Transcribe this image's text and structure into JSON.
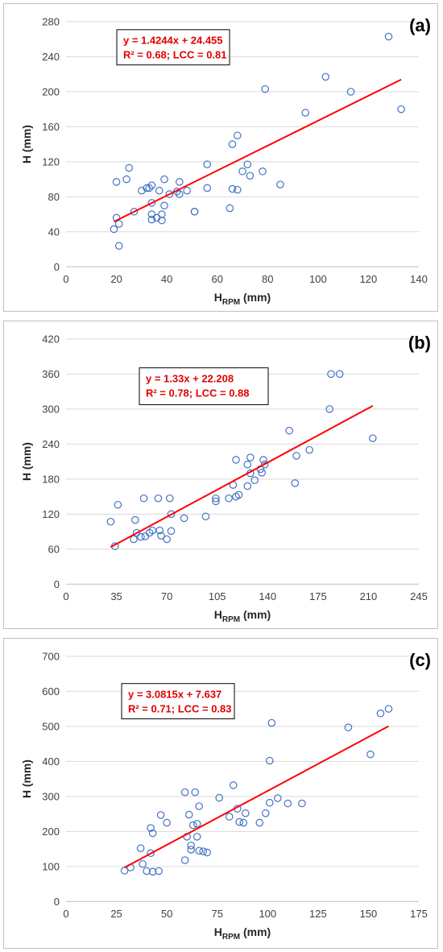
{
  "colors": {
    "points": "#4472c4",
    "fit": "#ff0000",
    "grid": "#d9d9d9",
    "equation": "#e00000"
  },
  "chart_data": [
    {
      "type": "scatter",
      "panel_label": "(a)",
      "xlabel_main": "H",
      "xlabel_sub": "RPM",
      "xlabel_unit": " (mm)",
      "ylabel": "H (mm)",
      "xlim": [
        0,
        140
      ],
      "ylim": [
        0,
        280
      ],
      "xticks": [
        0,
        20,
        40,
        60,
        80,
        100,
        120,
        140
      ],
      "yticks": [
        0,
        40,
        80,
        120,
        160,
        200,
        240,
        280
      ],
      "grid": "horizontal",
      "fit_line": {
        "slope": 1.4244,
        "intercept": 24.455,
        "x_range": [
          19,
          133
        ]
      },
      "equation": "y = 1.4244x + 24.455",
      "stats": "R² = 0.68; LCC = 0.81",
      "points": [
        [
          19,
          43
        ],
        [
          20,
          56
        ],
        [
          20,
          97
        ],
        [
          21,
          49
        ],
        [
          21,
          24
        ],
        [
          24,
          100
        ],
        [
          25,
          113
        ],
        [
          27,
          63
        ],
        [
          30,
          87
        ],
        [
          32,
          90
        ],
        [
          33,
          90
        ],
        [
          34,
          73
        ],
        [
          34,
          93
        ],
        [
          34,
          54
        ],
        [
          34,
          60
        ],
        [
          36,
          56
        ],
        [
          37,
          87
        ],
        [
          38,
          53
        ],
        [
          38,
          60
        ],
        [
          39,
          70
        ],
        [
          39,
          100
        ],
        [
          41,
          83
        ],
        [
          44,
          86
        ],
        [
          45,
          83
        ],
        [
          45,
          97
        ],
        [
          48,
          87
        ],
        [
          51,
          63
        ],
        [
          51,
          63
        ],
        [
          56,
          90
        ],
        [
          56,
          117
        ],
        [
          65,
          67
        ],
        [
          66,
          140
        ],
        [
          66,
          89
        ],
        [
          68,
          88
        ],
        [
          68,
          150
        ],
        [
          70,
          109
        ],
        [
          72,
          117
        ],
        [
          73,
          104
        ],
        [
          78,
          109
        ],
        [
          79,
          203
        ],
        [
          85,
          94
        ],
        [
          95,
          176
        ],
        [
          103,
          217
        ],
        [
          113,
          200
        ],
        [
          128,
          263
        ],
        [
          133,
          180
        ]
      ]
    },
    {
      "type": "scatter",
      "panel_label": "(b)",
      "xlabel_main": "H",
      "xlabel_sub": "RPM",
      "xlabel_unit": " (mm)",
      "ylabel": "H (mm)",
      "xlim": [
        0,
        245
      ],
      "ylim": [
        0,
        420
      ],
      "xticks": [
        0,
        35,
        70,
        105,
        140,
        175,
        210,
        245
      ],
      "yticks": [
        0,
        60,
        120,
        180,
        240,
        300,
        360,
        420
      ],
      "grid": "horizontal",
      "fit_line": {
        "slope": 1.33,
        "intercept": 22.208,
        "x_range": [
          31,
          213
        ]
      },
      "equation": "y = 1.33x + 22.208",
      "stats": "R² = 0.78; LCC = 0.88",
      "points": [
        [
          31,
          107
        ],
        [
          34,
          65
        ],
        [
          36,
          136
        ],
        [
          47,
          77
        ],
        [
          48,
          110
        ],
        [
          49,
          88
        ],
        [
          52,
          81
        ],
        [
          54,
          147
        ],
        [
          55,
          82
        ],
        [
          58,
          88
        ],
        [
          60,
          92
        ],
        [
          64,
          147
        ],
        [
          65,
          92
        ],
        [
          66,
          83
        ],
        [
          70,
          77
        ],
        [
          72,
          147
        ],
        [
          73,
          91
        ],
        [
          73,
          120
        ],
        [
          82,
          113
        ],
        [
          97,
          116
        ],
        [
          104,
          142
        ],
        [
          104,
          147
        ],
        [
          113,
          147
        ],
        [
          116,
          170
        ],
        [
          118,
          213
        ],
        [
          118,
          150
        ],
        [
          120,
          153
        ],
        [
          126,
          168
        ],
        [
          126,
          205
        ],
        [
          128,
          190
        ],
        [
          128,
          217
        ],
        [
          131,
          178
        ],
        [
          135,
          197
        ],
        [
          136,
          191
        ],
        [
          137,
          213
        ],
        [
          138,
          205
        ],
        [
          155,
          263
        ],
        [
          159,
          173
        ],
        [
          160,
          220
        ],
        [
          169,
          230
        ],
        [
          183,
          300
        ],
        [
          184,
          360
        ],
        [
          190,
          360
        ],
        [
          213,
          250
        ]
      ]
    },
    {
      "type": "scatter",
      "panel_label": "(c)",
      "xlabel_main": "H",
      "xlabel_sub": "RPM",
      "xlabel_unit": " (mm)",
      "ylabel": "H (mm)",
      "xlim": [
        0,
        175
      ],
      "ylim": [
        0,
        700
      ],
      "xticks": [
        0,
        25,
        50,
        75,
        100,
        125,
        150,
        175
      ],
      "yticks": [
        0,
        100,
        200,
        300,
        400,
        500,
        600,
        700
      ],
      "grid": "horizontal",
      "fit_line": {
        "slope": 3.0815,
        "intercept": 7.637,
        "x_range": [
          29,
          160
        ]
      },
      "equation": "y = 3.0815x + 7.637",
      "stats": "R² = 0.71; LCC = 0.83",
      "points": [
        [
          29,
          88
        ],
        [
          32,
          97
        ],
        [
          37,
          152
        ],
        [
          38,
          107
        ],
        [
          40,
          87
        ],
        [
          42,
          138
        ],
        [
          42,
          210
        ],
        [
          43,
          195
        ],
        [
          43,
          85
        ],
        [
          46,
          87
        ],
        [
          47,
          247
        ],
        [
          50,
          225
        ],
        [
          59,
          118
        ],
        [
          59,
          312
        ],
        [
          60,
          185
        ],
        [
          61,
          248
        ],
        [
          62,
          148
        ],
        [
          62,
          160
        ],
        [
          63,
          218
        ],
        [
          64,
          312
        ],
        [
          65,
          185
        ],
        [
          65,
          222
        ],
        [
          66,
          145
        ],
        [
          66,
          272
        ],
        [
          68,
          143
        ],
        [
          70,
          140
        ],
        [
          76,
          296
        ],
        [
          81,
          242
        ],
        [
          83,
          332
        ],
        [
          85,
          265
        ],
        [
          86,
          227
        ],
        [
          88,
          225
        ],
        [
          89,
          252
        ],
        [
          96,
          225
        ],
        [
          99,
          252
        ],
        [
          101,
          402
        ],
        [
          101,
          282
        ],
        [
          102,
          510
        ],
        [
          105,
          295
        ],
        [
          110,
          280
        ],
        [
          117,
          280
        ],
        [
          140,
          497
        ],
        [
          151,
          420
        ],
        [
          156,
          537
        ],
        [
          160,
          550
        ]
      ]
    }
  ]
}
